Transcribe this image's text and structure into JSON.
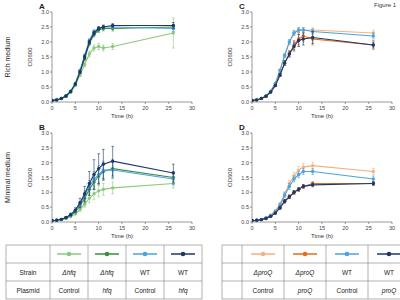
{
  "figure_label": "Figure 1",
  "legend_table": {
    "row_labels": [
      "Strain",
      "Plasmid"
    ]
  },
  "chart_data": [
    {
      "type": "line",
      "title": "A",
      "annotations": [
        "Rich medium"
      ],
      "x_label": "Time (h)",
      "y_label": "OD600",
      "x": [
        0,
        1,
        2,
        3,
        4,
        5,
        6,
        7,
        8,
        9,
        10,
        11,
        13,
        26
      ],
      "xlim": [
        0,
        30
      ],
      "xticks": [
        0,
        5,
        10,
        15,
        20,
        25,
        30
      ],
      "ylim": [
        0,
        3
      ],
      "yticks": [
        {
          "value": 0,
          "label": "0.0"
        },
        0.5,
        {
          "value": 1,
          "label": "1.0"
        },
        1.5,
        {
          "value": 2,
          "label": "2.0"
        },
        2.5,
        {
          "value": 3,
          "label": "3.0"
        }
      ],
      "grid": false,
      "marker": "circle",
      "series": [
        {
          "strain": "Δhfq",
          "plasmid": "Control",
          "color": "#8cc97c",
          "values": [
            0.05,
            0.07,
            0.11,
            0.19,
            0.32,
            0.55,
            0.9,
            1.25,
            1.6,
            1.8,
            1.85,
            1.8,
            1.85,
            2.3
          ],
          "errors": [
            0.01,
            0.01,
            0.01,
            0.02,
            0.02,
            0.03,
            0.05,
            0.08,
            0.1,
            0.1,
            0.1,
            0.1,
            0.1,
            0.5
          ]
        },
        {
          "strain": "Δhfq",
          "plasmid": "hfq",
          "color": "#3d8b3d",
          "values": [
            0.05,
            0.07,
            0.12,
            0.2,
            0.35,
            0.6,
            1.0,
            1.45,
            1.95,
            2.25,
            2.4,
            2.45,
            2.45,
            2.5
          ],
          "errors": [
            0.01,
            0.01,
            0.01,
            0.02,
            0.02,
            0.03,
            0.05,
            0.06,
            0.08,
            0.08,
            0.08,
            0.08,
            0.08,
            0.08
          ]
        },
        {
          "strain": "WT",
          "plasmid": "Control",
          "color": "#4aa3df",
          "values": [
            0.05,
            0.07,
            0.12,
            0.2,
            0.36,
            0.62,
            1.05,
            1.55,
            2.05,
            2.35,
            2.45,
            2.5,
            2.5,
            2.45
          ],
          "errors": [
            0.01,
            0.01,
            0.01,
            0.02,
            0.02,
            0.03,
            0.05,
            0.06,
            0.06,
            0.06,
            0.06,
            0.06,
            0.06,
            0.1
          ]
        },
        {
          "strain": "WT",
          "plasmid": "hfq",
          "color": "#1f3864",
          "values": [
            0.05,
            0.07,
            0.12,
            0.2,
            0.35,
            0.6,
            1.0,
            1.5,
            2.0,
            2.3,
            2.45,
            2.5,
            2.55,
            2.55
          ],
          "errors": [
            0.01,
            0.01,
            0.01,
            0.02,
            0.02,
            0.03,
            0.05,
            0.06,
            0.06,
            0.06,
            0.06,
            0.06,
            0.06,
            0.1
          ]
        }
      ]
    },
    {
      "type": "line",
      "title": "B",
      "annotations": [
        "Minimal medium"
      ],
      "x_label": "Time (h)",
      "y_label": "OD600",
      "x": [
        0,
        1,
        2,
        3,
        4,
        5,
        6,
        7,
        8,
        9,
        10,
        11,
        13,
        26
      ],
      "xlim": [
        0,
        30
      ],
      "xticks": [
        0,
        5,
        10,
        15,
        20,
        25,
        30
      ],
      "ylim": [
        0,
        3
      ],
      "yticks": [
        {
          "value": 0,
          "label": "0.0"
        },
        0.5,
        {
          "value": 1,
          "label": "1.0"
        },
        1.5,
        {
          "value": 2,
          "label": "2.0"
        },
        2.5,
        {
          "value": 3,
          "label": "3.0"
        }
      ],
      "grid": false,
      "marker": "circle",
      "series": [
        {
          "strain": "Δhfq",
          "plasmid": "Control",
          "color": "#8cc97c",
          "values": [
            0.05,
            0.06,
            0.08,
            0.12,
            0.18,
            0.28,
            0.42,
            0.6,
            0.8,
            0.95,
            1.05,
            1.1,
            1.15,
            1.3
          ],
          "errors": [
            0.01,
            0.01,
            0.01,
            0.02,
            0.03,
            0.04,
            0.06,
            0.1,
            0.15,
            0.2,
            0.2,
            0.2,
            0.2,
            0.15
          ]
        },
        {
          "strain": "Δhfq",
          "plasmid": "hfq",
          "color": "#3d8b3d",
          "values": [
            0.05,
            0.06,
            0.09,
            0.14,
            0.22,
            0.35,
            0.55,
            0.8,
            1.1,
            1.35,
            1.55,
            1.7,
            1.8,
            1.5
          ],
          "errors": [
            0.01,
            0.01,
            0.01,
            0.02,
            0.03,
            0.05,
            0.08,
            0.15,
            0.2,
            0.25,
            0.3,
            0.3,
            0.3,
            0.2
          ]
        },
        {
          "strain": "WT",
          "plasmid": "Control",
          "color": "#4aa3df",
          "values": [
            0.05,
            0.06,
            0.09,
            0.14,
            0.23,
            0.37,
            0.6,
            0.9,
            1.2,
            1.45,
            1.6,
            1.75,
            1.75,
            1.45
          ],
          "errors": [
            0.01,
            0.01,
            0.01,
            0.02,
            0.03,
            0.05,
            0.08,
            0.15,
            0.2,
            0.25,
            0.3,
            0.3,
            0.3,
            0.2
          ]
        },
        {
          "strain": "WT",
          "plasmid": "hfq",
          "color": "#1f3864",
          "values": [
            0.05,
            0.06,
            0.09,
            0.15,
            0.25,
            0.4,
            0.65,
            0.95,
            1.3,
            1.6,
            1.8,
            1.95,
            2.05,
            1.65
          ],
          "errors": [
            0.01,
            0.01,
            0.02,
            0.03,
            0.05,
            0.08,
            0.15,
            0.25,
            0.4,
            0.5,
            0.5,
            0.5,
            0.5,
            0.3
          ]
        }
      ]
    },
    {
      "type": "line",
      "title": "C",
      "x_label": "Time (h)",
      "y_label": "OD600",
      "x": [
        0,
        1,
        2,
        3,
        4,
        5,
        6,
        7,
        8,
        9,
        10,
        11,
        13,
        26
      ],
      "xlim": [
        0,
        30
      ],
      "xticks": [
        0,
        5,
        10,
        15,
        20,
        25,
        30
      ],
      "ylim": [
        0,
        3
      ],
      "yticks": [
        {
          "value": 0,
          "label": "0.0"
        },
        0.5,
        {
          "value": 1,
          "label": "1.0"
        },
        1.5,
        {
          "value": 2,
          "label": "2.0"
        },
        2.5,
        {
          "value": 3,
          "label": "3.0"
        }
      ],
      "grid": false,
      "marker": "circle",
      "series": [
        {
          "strain": "ΔproQ",
          "plasmid": "Control",
          "color": "#f5b183",
          "values": [
            0.05,
            0.07,
            0.12,
            0.2,
            0.36,
            0.62,
            1.05,
            1.55,
            2.0,
            2.3,
            2.4,
            2.4,
            2.4,
            2.3
          ],
          "errors": [
            0.01,
            0.01,
            0.01,
            0.02,
            0.02,
            0.03,
            0.05,
            0.06,
            0.08,
            0.08,
            0.08,
            0.08,
            0.08,
            0.1
          ]
        },
        {
          "strain": "ΔproQ",
          "plasmid": "proQ",
          "color": "#e46c1e",
          "values": [
            0.05,
            0.07,
            0.12,
            0.19,
            0.33,
            0.55,
            0.9,
            1.3,
            1.6,
            1.9,
            2.1,
            2.2,
            2.1,
            1.9
          ],
          "errors": [
            0.01,
            0.01,
            0.01,
            0.02,
            0.02,
            0.03,
            0.05,
            0.08,
            0.1,
            0.15,
            0.2,
            0.2,
            0.2,
            0.15
          ]
        },
        {
          "strain": "WT",
          "plasmid": "Control",
          "color": "#4aa3df",
          "values": [
            0.05,
            0.07,
            0.12,
            0.2,
            0.36,
            0.62,
            1.05,
            1.55,
            2.0,
            2.3,
            2.4,
            2.4,
            2.35,
            2.2
          ],
          "errors": [
            0.01,
            0.01,
            0.01,
            0.02,
            0.02,
            0.03,
            0.05,
            0.06,
            0.08,
            0.08,
            0.08,
            0.08,
            0.08,
            0.1
          ]
        },
        {
          "strain": "WT",
          "plasmid": "proQ",
          "color": "#1f3864",
          "values": [
            0.05,
            0.07,
            0.12,
            0.19,
            0.33,
            0.55,
            0.9,
            1.3,
            1.6,
            1.85,
            2.05,
            2.1,
            2.15,
            1.9
          ],
          "errors": [
            0.01,
            0.01,
            0.01,
            0.02,
            0.02,
            0.03,
            0.05,
            0.08,
            0.1,
            0.15,
            0.2,
            0.2,
            0.2,
            0.1
          ]
        }
      ]
    },
    {
      "type": "line",
      "title": "D",
      "x_label": "Time (h)",
      "y_label": "OD600",
      "x": [
        0,
        1,
        2,
        3,
        4,
        5,
        6,
        7,
        8,
        9,
        10,
        11,
        13,
        26
      ],
      "xlim": [
        0,
        30
      ],
      "xticks": [
        0,
        5,
        10,
        15,
        20,
        25,
        30
      ],
      "ylim": [
        0,
        3
      ],
      "yticks": [
        {
          "value": 0,
          "label": "0.0"
        },
        0.5,
        {
          "value": 1,
          "label": "1.0"
        },
        1.5,
        {
          "value": 2,
          "label": "2.0"
        },
        2.5,
        {
          "value": 3,
          "label": "3.0"
        }
      ],
      "grid": false,
      "marker": "circle",
      "series": [
        {
          "strain": "ΔproQ",
          "plasmid": "Control",
          "color": "#f5b183",
          "values": [
            0.05,
            0.06,
            0.09,
            0.14,
            0.23,
            0.37,
            0.6,
            0.95,
            1.3,
            1.55,
            1.75,
            1.85,
            1.9,
            1.7
          ],
          "errors": [
            0.01,
            0.01,
            0.01,
            0.02,
            0.03,
            0.04,
            0.06,
            0.08,
            0.1,
            0.12,
            0.12,
            0.12,
            0.12,
            0.1
          ]
        },
        {
          "strain": "ΔproQ",
          "plasmid": "proQ",
          "color": "#e46c1e",
          "values": [
            0.05,
            0.06,
            0.08,
            0.12,
            0.19,
            0.3,
            0.48,
            0.7,
            0.85,
            1.0,
            1.1,
            1.2,
            1.3,
            1.3
          ],
          "errors": [
            0.01,
            0.01,
            0.01,
            0.02,
            0.02,
            0.03,
            0.05,
            0.06,
            0.06,
            0.06,
            0.06,
            0.06,
            0.06,
            0.06
          ]
        },
        {
          "strain": "WT",
          "plasmid": "Control",
          "color": "#4aa3df",
          "values": [
            0.05,
            0.06,
            0.09,
            0.14,
            0.22,
            0.35,
            0.57,
            0.9,
            1.2,
            1.45,
            1.6,
            1.7,
            1.7,
            1.45
          ],
          "errors": [
            0.01,
            0.01,
            0.01,
            0.02,
            0.03,
            0.04,
            0.06,
            0.08,
            0.1,
            0.1,
            0.1,
            0.1,
            0.1,
            0.1
          ]
        },
        {
          "strain": "WT",
          "plasmid": "proQ",
          "color": "#1f3864",
          "values": [
            0.05,
            0.06,
            0.08,
            0.12,
            0.19,
            0.3,
            0.48,
            0.7,
            0.85,
            1.0,
            1.1,
            1.2,
            1.25,
            1.3
          ],
          "errors": [
            0.01,
            0.01,
            0.01,
            0.02,
            0.02,
            0.03,
            0.05,
            0.06,
            0.06,
            0.06,
            0.06,
            0.06,
            0.06,
            0.06
          ]
        }
      ]
    }
  ]
}
